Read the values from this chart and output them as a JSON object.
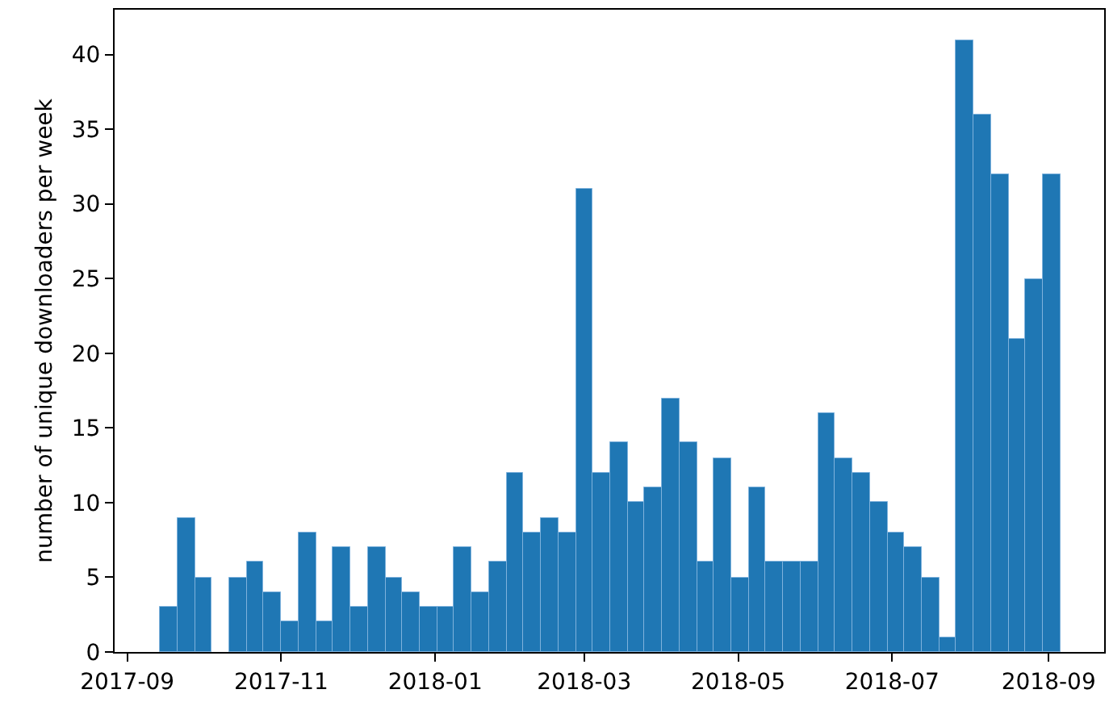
{
  "chart_data": {
    "type": "histogram",
    "ylabel": "number of unique downloaders per week",
    "color": "#1f77b4",
    "bins": [
      "2017-09-14T00:00",
      "2017-09-20T21:00",
      "2017-09-27T17:00",
      "2017-10-04T14:00",
      "2017-10-11T10:00",
      "2017-10-18T07:00",
      "2017-10-25T03:00",
      "2017-11-01T00:00",
      "2017-11-07T21:00",
      "2017-11-14T17:00",
      "2017-11-21T14:00",
      "2017-11-28T10:00",
      "2017-12-05T07:00",
      "2017-12-12T03:00",
      "2017-12-19T00:00",
      "2017-12-25T21:00",
      "2018-01-01T17:00",
      "2018-01-08T14:00",
      "2018-01-15T10:00",
      "2018-01-22T07:00",
      "2018-01-29T03:00",
      "2018-02-05T00:00",
      "2018-02-11T21:00",
      "2018-02-18T17:00",
      "2018-02-25T14:00",
      "2018-03-04T10:00",
      "2018-03-11T07:00",
      "2018-03-18T03:00",
      "2018-03-25T00:00",
      "2018-03-31T21:00",
      "2018-04-07T17:00",
      "2018-04-14T14:00",
      "2018-04-21T10:00",
      "2018-04-28T07:00",
      "2018-05-05T03:00",
      "2018-05-12T00:00",
      "2018-05-18T21:00",
      "2018-05-25T17:00",
      "2018-06-01T14:00",
      "2018-06-08T10:00",
      "2018-06-15T07:00",
      "2018-06-22T03:00",
      "2018-06-29T00:00",
      "2018-07-05T21:00",
      "2018-07-12T17:00",
      "2018-07-19T14:00",
      "2018-07-26T10:00",
      "2018-08-02T07:00",
      "2018-08-09T03:00",
      "2018-08-16T00:00",
      "2018-08-22T21:00",
      "2018-08-29T17:00",
      "2018-09-05T14:00"
    ],
    "values": [
      3,
      9,
      5,
      0,
      5,
      6,
      4,
      2,
      8,
      2,
      7,
      3,
      7,
      5,
      4,
      3,
      3,
      7,
      4,
      6,
      12,
      8,
      9,
      8,
      31,
      12,
      14,
      10,
      11,
      17,
      14,
      6,
      13,
      5,
      11,
      6,
      6,
      6,
      16,
      13,
      12,
      10,
      8,
      7,
      5,
      1,
      41,
      36,
      32,
      21,
      25,
      32
    ],
    "xlim": [
      "2017-08-27",
      "2018-09-23"
    ],
    "xticks": [
      "2017-09",
      "2017-11",
      "2018-01",
      "2018-03",
      "2018-05",
      "2018-07",
      "2018-09"
    ],
    "ylim": [
      0,
      43
    ],
    "yticks": [
      0,
      5,
      10,
      15,
      20,
      25,
      30,
      35,
      40
    ]
  }
}
